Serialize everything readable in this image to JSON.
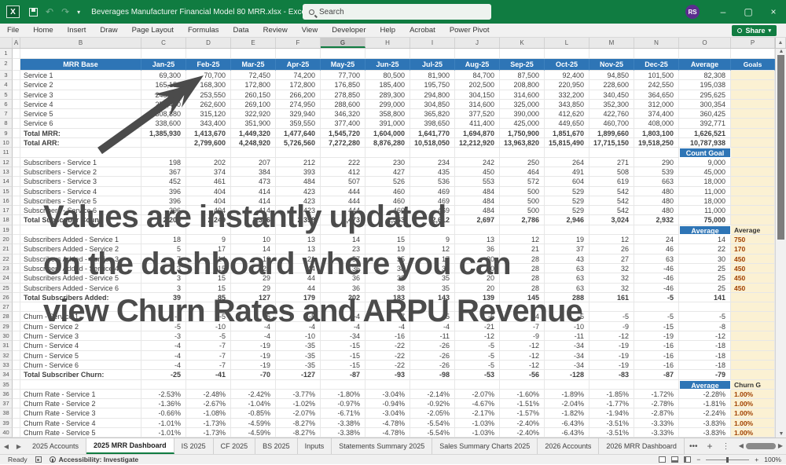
{
  "titlebar": {
    "title": "Beverages Manufacturer Financial Model 80 MRR.xlsx  -  Excel",
    "search_label": "Search",
    "avatar_initials": "RS",
    "minimize": "–",
    "restore": "▢",
    "close": "×"
  },
  "ribbon": {
    "tabs": [
      "File",
      "Home",
      "Insert",
      "Draw",
      "Page Layout",
      "Formulas",
      "Data",
      "Review",
      "View",
      "Developer",
      "Help",
      "Acrobat",
      "Power Pivot"
    ],
    "share_label": "Share"
  },
  "columns": {
    "letters": [
      "A",
      "B",
      "C",
      "D",
      "E",
      "F",
      "G",
      "H",
      "I",
      "J",
      "K",
      "L",
      "M",
      "N",
      "O",
      "P"
    ],
    "selected": "G"
  },
  "watermark": {
    "lines": [
      "Values are instantly updated",
      "on the dashboard where you can",
      "view Churn Rates and ARPU Revenue"
    ]
  },
  "sheet": {
    "rows": [
      {
        "n": 1,
        "type": "top"
      },
      {
        "n": 2,
        "type": "header",
        "label": "MRR Base",
        "values": [
          "Jan-25",
          "Feb-25",
          "Mar-25",
          "Apr-25",
          "May-25",
          "Jun-25",
          "Jul-25",
          "Aug-25",
          "Sep-25",
          "Oct-25",
          "Nov-25",
          "Dec-25"
        ],
        "avg": "Average",
        "goal": "Goals"
      },
      {
        "n": 3,
        "type": "data",
        "label": "Service 1",
        "values": [
          "69,300",
          "70,700",
          "72,450",
          "74,200",
          "77,700",
          "80,500",
          "81,900",
          "84,700",
          "87,500",
          "92,400",
          "94,850",
          "101,500"
        ],
        "avg": "82,308"
      },
      {
        "n": 4,
        "type": "data",
        "label": "Service 2",
        "values": [
          "165,150",
          "168,300",
          "172,800",
          "172,800",
          "176,850",
          "185,400",
          "195,750",
          "202,500",
          "208,800",
          "220,950",
          "228,600",
          "242,550"
        ],
        "avg": "195,038"
      },
      {
        "n": 5,
        "type": "data",
        "label": "Service 3",
        "values": [
          "248,600",
          "253,550",
          "260,150",
          "266,200",
          "278,850",
          "289,300",
          "294,800",
          "304,150",
          "314,600",
          "332,200",
          "340,450",
          "364,650"
        ],
        "avg": "295,625"
      },
      {
        "n": 6,
        "type": "data",
        "label": "Service 4",
        "values": [
          "257,400",
          "262,600",
          "269,100",
          "274,950",
          "288,600",
          "299,000",
          "304,850",
          "314,600",
          "325,000",
          "343,850",
          "352,300",
          "312,000"
        ],
        "avg": "300,354"
      },
      {
        "n": 7,
        "type": "data",
        "label": "Service 5",
        "values": [
          "308,880",
          "315,120",
          "322,920",
          "329,940",
          "346,320",
          "358,800",
          "365,820",
          "377,520",
          "390,000",
          "412,620",
          "422,760",
          "374,400"
        ],
        "avg": "360,425"
      },
      {
        "n": 8,
        "type": "data",
        "label": "Service 6",
        "values": [
          "338,600",
          "343,400",
          "351,900",
          "359,550",
          "377,400",
          "391,000",
          "398,650",
          "411,400",
          "425,000",
          "449,650",
          "460,700",
          "408,000"
        ],
        "avg": "392,771"
      },
      {
        "n": 9,
        "type": "total",
        "label": "Total MRR:",
        "values": [
          "1,385,930",
          "1,413,670",
          "1,449,320",
          "1,477,640",
          "1,545,720",
          "1,604,000",
          "1,641,770",
          "1,694,870",
          "1,750,900",
          "1,851,670",
          "1,899,660",
          "1,803,100"
        ],
        "avg": "1,626,521"
      },
      {
        "n": 10,
        "type": "total",
        "label": "Total ARR:",
        "values": [
          "",
          "2,799,600",
          "4,248,920",
          "5,726,560",
          "7,272,280",
          "8,876,280",
          "10,518,050",
          "12,212,920",
          "13,963,820",
          "15,815,490",
          "17,715,150",
          "19,518,250"
        ],
        "avg": "10,787,938"
      },
      {
        "n": 11,
        "type": "blank",
        "avgBadge": "Count Goal"
      },
      {
        "n": 12,
        "type": "data",
        "label": "Subscribers - Service 1",
        "values": [
          "198",
          "202",
          "207",
          "212",
          "222",
          "230",
          "234",
          "242",
          "250",
          "264",
          "271",
          "290"
        ],
        "avg": "9,000"
      },
      {
        "n": 13,
        "type": "data",
        "label": "Subscribers - Service 2",
        "values": [
          "367",
          "374",
          "384",
          "393",
          "412",
          "427",
          "435",
          "450",
          "464",
          "491",
          "508",
          "539"
        ],
        "avg": "45,000"
      },
      {
        "n": 14,
        "type": "data",
        "label": "Subscribers - Service 3",
        "values": [
          "452",
          "461",
          "473",
          "484",
          "507",
          "526",
          "536",
          "553",
          "572",
          "604",
          "619",
          "663"
        ],
        "avg": "18,000"
      },
      {
        "n": 15,
        "type": "data",
        "label": "Subscribers - Service 4",
        "values": [
          "396",
          "404",
          "414",
          "423",
          "444",
          "460",
          "469",
          "484",
          "500",
          "529",
          "542",
          "480"
        ],
        "avg": "11,000"
      },
      {
        "n": 16,
        "type": "data",
        "label": "Subscribers - Service 5",
        "values": [
          "396",
          "404",
          "414",
          "423",
          "444",
          "460",
          "469",
          "484",
          "500",
          "529",
          "542",
          "480"
        ],
        "avg": "18,000"
      },
      {
        "n": 17,
        "type": "data",
        "label": "Subscribers - Service 6",
        "values": [
          "396",
          "404",
          "414",
          "423",
          "444",
          "460",
          "469",
          "484",
          "500",
          "529",
          "542",
          "480"
        ],
        "avg": "11,000"
      },
      {
        "n": 18,
        "type": "total",
        "label": "Total Subscriber Count:",
        "values": [
          "2,205",
          "2,249",
          "2,306",
          "2,358",
          "2,473",
          "2,563",
          "2,612",
          "2,697",
          "2,786",
          "2,946",
          "3,024",
          "2,932"
        ],
        "avg": "75,000"
      },
      {
        "n": 19,
        "type": "blank",
        "avgBadge": "Average",
        "goal": "Average"
      },
      {
        "n": 20,
        "type": "data",
        "label": "Subscribers Added - Service 1",
        "values": [
          "18",
          "9",
          "10",
          "13",
          "14",
          "15",
          "9",
          "13",
          "12",
          "19",
          "12",
          "24"
        ],
        "avg": "14",
        "goal": "750"
      },
      {
        "n": 21,
        "type": "data",
        "label": "Subscribers Added - Service 2",
        "values": [
          "5",
          "17",
          "14",
          "13",
          "23",
          "19",
          "12",
          "36",
          "21",
          "37",
          "26",
          "46"
        ],
        "avg": "22",
        "goal": "170"
      },
      {
        "n": 22,
        "type": "data",
        "label": "Subscribers Added - Service 3",
        "values": [
          "7",
          "14",
          "16",
          "21",
          "57",
          "35",
          "17",
          "30",
          "28",
          "43",
          "27",
          "63"
        ],
        "avg": "30",
        "goal": "450"
      },
      {
        "n": 23,
        "type": "data",
        "label": "Subscribers Added - Service 4",
        "values": [
          "3",
          "15",
          "29",
          "44",
          "36",
          "38",
          "35",
          "20",
          "28",
          "63",
          "32",
          "-46"
        ],
        "avg": "25",
        "goal": "450"
      },
      {
        "n": 24,
        "type": "data",
        "label": "Subscribers Added - Service 5",
        "values": [
          "3",
          "15",
          "29",
          "44",
          "36",
          "38",
          "35",
          "20",
          "28",
          "63",
          "32",
          "-46"
        ],
        "avg": "25",
        "goal": "450"
      },
      {
        "n": 25,
        "type": "data",
        "label": "Subscribers Added - Service 6",
        "values": [
          "3",
          "15",
          "29",
          "44",
          "36",
          "38",
          "35",
          "20",
          "28",
          "63",
          "32",
          "-46"
        ],
        "avg": "25",
        "goal": "450"
      },
      {
        "n": 26,
        "type": "total",
        "label": "Total Subscribers Added:",
        "values": [
          "39",
          "85",
          "127",
          "179",
          "202",
          "183",
          "143",
          "139",
          "145",
          "288",
          "161",
          "-5"
        ],
        "avg": "141"
      },
      {
        "n": 27,
        "type": "blank"
      },
      {
        "n": 28,
        "type": "data",
        "label": "Churn - Service 1",
        "values": [
          "-5",
          "-5",
          "-5",
          "-8",
          "-4",
          "-7",
          "-5",
          "-5",
          "-4",
          "-5",
          "-5",
          "-5"
        ],
        "avg": "-5"
      },
      {
        "n": 29,
        "type": "data",
        "label": "Churn - Service 2",
        "values": [
          "-5",
          "-10",
          "-4",
          "-4",
          "-4",
          "-4",
          "-4",
          "-21",
          "-7",
          "-10",
          "-9",
          "-15"
        ],
        "avg": "-8"
      },
      {
        "n": 30,
        "type": "data",
        "label": "Churn - Service 3",
        "values": [
          "-3",
          "-5",
          "-4",
          "-10",
          "-34",
          "-16",
          "-11",
          "-12",
          "-9",
          "-11",
          "-12",
          "-19"
        ],
        "avg": "-12"
      },
      {
        "n": 31,
        "type": "data",
        "label": "Churn - Service 4",
        "values": [
          "-4",
          "-7",
          "-19",
          "-35",
          "-15",
          "-22",
          "-26",
          "-5",
          "-12",
          "-34",
          "-19",
          "-16"
        ],
        "avg": "-18"
      },
      {
        "n": 32,
        "type": "data",
        "label": "Churn - Service 5",
        "values": [
          "-4",
          "-7",
          "-19",
          "-35",
          "-15",
          "-22",
          "-26",
          "-5",
          "-12",
          "-34",
          "-19",
          "-16"
        ],
        "avg": "-18"
      },
      {
        "n": 33,
        "type": "data",
        "label": "Churn - Service 6",
        "values": [
          "-4",
          "-7",
          "-19",
          "-35",
          "-15",
          "-22",
          "-26",
          "-5",
          "-12",
          "-34",
          "-19",
          "-16"
        ],
        "avg": "-18"
      },
      {
        "n": 34,
        "type": "total",
        "label": "Total Subscriber Churn:",
        "values": [
          "-25",
          "-41",
          "-70",
          "-127",
          "-87",
          "-93",
          "-98",
          "-53",
          "-56",
          "-128",
          "-83",
          "-87"
        ],
        "avg": "-79"
      },
      {
        "n": 35,
        "type": "blank",
        "avgBadge": "Average",
        "goal": "Churn G"
      },
      {
        "n": 36,
        "type": "data",
        "label": "Churn Rate - Service 1",
        "values": [
          "-2.53%",
          "-2.48%",
          "-2.42%",
          "-3.77%",
          "-1.80%",
          "-3.04%",
          "-2.14%",
          "-2.07%",
          "-1.60%",
          "-1.89%",
          "-1.85%",
          "-1.72%"
        ],
        "avg": "-2.28%",
        "goal": "1.00%"
      },
      {
        "n": 37,
        "type": "data",
        "label": "Churn Rate - Service 2",
        "values": [
          "-1.36%",
          "-2.67%",
          "-1.04%",
          "-1.02%",
          "-0.97%",
          "-0.94%",
          "-0.92%",
          "-4.67%",
          "-1.51%",
          "-2.04%",
          "-1.77%",
          "-2.78%"
        ],
        "avg": "-1.81%",
        "goal": "1.00%"
      },
      {
        "n": 38,
        "type": "data",
        "label": "Churn Rate - Service 3",
        "values": [
          "-0.66%",
          "-1.08%",
          "-0.85%",
          "-2.07%",
          "-6.71%",
          "-3.04%",
          "-2.05%",
          "-2.17%",
          "-1.57%",
          "-1.82%",
          "-1.94%",
          "-2.87%"
        ],
        "avg": "-2.24%",
        "goal": "1.00%"
      },
      {
        "n": 39,
        "type": "data",
        "label": "Churn Rate - Service 4",
        "values": [
          "-1.01%",
          "-1.73%",
          "-4.59%",
          "-8.27%",
          "-3.38%",
          "-4.78%",
          "-5.54%",
          "-1.03%",
          "-2.40%",
          "-6.43%",
          "-3.51%",
          "-3.33%"
        ],
        "avg": "-3.83%",
        "goal": "1.00%"
      },
      {
        "n": 40,
        "type": "data",
        "label": "Churn Rate - Service 5",
        "values": [
          "-1.01%",
          "-1.73%",
          "-4.59%",
          "-8.27%",
          "-3.38%",
          "-4.78%",
          "-5.54%",
          "-1.03%",
          "-2.40%",
          "-6.43%",
          "-3.51%",
          "-3.33%"
        ],
        "avg": "-3.83%",
        "goal": "1.00%"
      }
    ]
  },
  "sheettabs": {
    "tabs": [
      "2025 Accounts",
      "2025 MRR Dashboard",
      "IS 2025",
      "CF 2025",
      "BS 2025",
      "Inputs",
      "Statements Summary 2025",
      "Sales Summary Charts 2025",
      "2026 Accounts",
      "2026 MRR Dashboard"
    ],
    "active": "2025 MRR Dashboard",
    "overflow": "•••",
    "add": "+",
    "more": "⋮"
  },
  "statusbar": {
    "ready": "Ready",
    "accessibility": "Accessibility: Investigate",
    "zoom": "100%"
  },
  "colors": {
    "titlebar_green": "#107C41",
    "header_blue": "#2E75B6",
    "goals_cream": "#FBF1D3",
    "goal_text": "#A04000",
    "watermark_gray": "#4B4B4B"
  }
}
